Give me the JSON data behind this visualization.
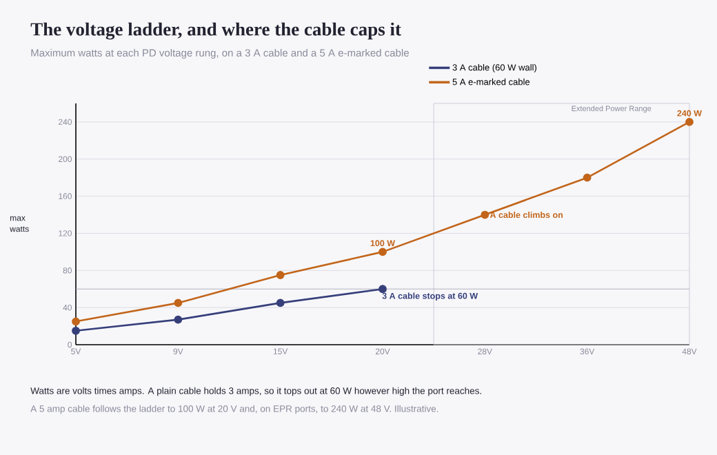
{
  "chart_data": {
    "type": "line",
    "title": "The voltage ladder, and where the cable caps it",
    "subtitle": "Maximum watts at each PD voltage rung, on a 3 A cable and a 5 A e-marked cable",
    "ylabel": "max watts",
    "categories": [
      "5V",
      "9V",
      "15V",
      "20V",
      "28V",
      "36V",
      "48V"
    ],
    "series": [
      {
        "name": "3 A cable (60 W wall)",
        "color": "#363f7a",
        "values": [
          15,
          27,
          45,
          60,
          null,
          null,
          null
        ]
      },
      {
        "name": "5 A e-marked cable",
        "color": "#c2651a",
        "values": [
          25,
          45,
          75,
          100,
          140,
          180,
          240
        ]
      }
    ],
    "ylim": [
      0,
      260
    ],
    "yticks": [
      0,
      40,
      80,
      120,
      160,
      200,
      240
    ],
    "grid": "y",
    "legend": "top",
    "marker": "circle",
    "line_style": "solid",
    "ref_lines": [
      {
        "axis": "y",
        "value": 60,
        "color": "#a8a8b8"
      }
    ],
    "annotations": [
      "Extended Power Range",
      {
        "text": "100 W",
        "x": "20V",
        "y": 100
      },
      {
        "text": "240 W",
        "x": "48V",
        "y": 240
      },
      {
        "text": "A cable climbs on",
        "x": "28V",
        "y": 140
      },
      {
        "text": "3 A cable stops at 60 W",
        "x": "20V",
        "y": 60
      },
      "Watts are volts times amps. A plain cable holds 3 amps, so it tops out at 60 W however high the port reaches.",
      "A 5 amp cable follows the ladder to 100 W at 20 V and, on EPR ports, to 240 W at 48 V. Illustrative."
    ]
  }
}
